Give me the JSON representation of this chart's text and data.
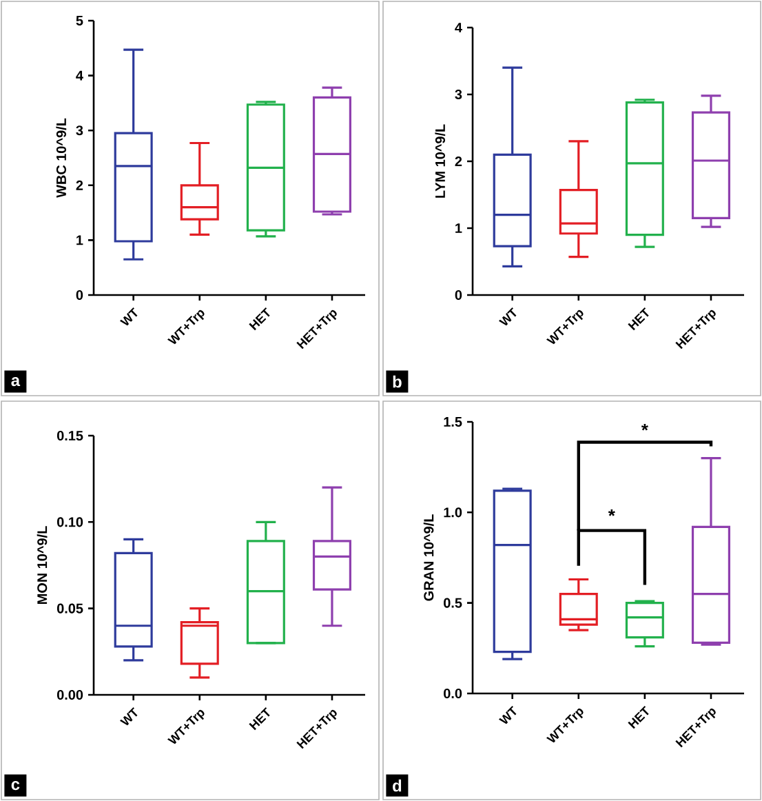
{
  "chart_data": [
    {
      "type": "box",
      "ylabel": "WBC 10^9/L",
      "categories": [
        "WT",
        "WT+Trp",
        "HET",
        "HET+Trp"
      ],
      "colors": [
        "#2e3b9c",
        "#e31e24",
        "#22b14c",
        "#8e3fae"
      ],
      "ylim": [
        0,
        5
      ],
      "yticks": [
        0,
        1,
        2,
        3,
        4,
        5
      ],
      "annotations": [
        "a"
      ],
      "boxes": [
        {
          "low": 0.65,
          "q1": 0.98,
          "median": 2.35,
          "q3": 2.95,
          "high": 4.47
        },
        {
          "low": 1.1,
          "q1": 1.38,
          "median": 1.6,
          "q3": 2.0,
          "high": 2.77
        },
        {
          "low": 1.07,
          "q1": 1.18,
          "median": 2.32,
          "q3": 3.47,
          "high": 3.52
        },
        {
          "low": 1.47,
          "q1": 1.52,
          "median": 2.57,
          "q3": 3.6,
          "high": 3.78
        }
      ]
    },
    {
      "type": "box",
      "ylabel": "LYM 10^9/L",
      "categories": [
        "WT",
        "WT+Trp",
        "HET",
        "HET+Trp"
      ],
      "colors": [
        "#2e3b9c",
        "#e31e24",
        "#22b14c",
        "#8e3fae"
      ],
      "ylim": [
        0,
        4
      ],
      "yticks": [
        0,
        1,
        2,
        3,
        4
      ],
      "annotations": [
        "b"
      ],
      "boxes": [
        {
          "low": 0.43,
          "q1": 0.73,
          "median": 1.2,
          "q3": 2.1,
          "high": 3.4
        },
        {
          "low": 0.57,
          "q1": 0.92,
          "median": 1.07,
          "q3": 1.57,
          "high": 2.3
        },
        {
          "low": 0.72,
          "q1": 0.9,
          "median": 1.97,
          "q3": 2.88,
          "high": 2.92
        },
        {
          "low": 1.02,
          "q1": 1.15,
          "median": 2.01,
          "q3": 2.73,
          "high": 2.98
        }
      ]
    },
    {
      "type": "box",
      "ylabel": "MON 10^9/L",
      "categories": [
        "WT",
        "WT+Trp",
        "HET",
        "HET+Trp"
      ],
      "colors": [
        "#2e3b9c",
        "#e31e24",
        "#22b14c",
        "#8e3fae"
      ],
      "ylim": [
        0,
        0.15
      ],
      "yticks": [
        {
          "value": 0,
          "label": "0.00"
        },
        {
          "value": 0.05,
          "label": "0.05"
        },
        {
          "value": 0.1,
          "label": "0.10"
        },
        {
          "value": 0.15,
          "label": "0.15"
        }
      ],
      "annotations": [
        "c"
      ],
      "boxes": [
        {
          "low": 0.02,
          "q1": 0.028,
          "median": 0.04,
          "q3": 0.082,
          "high": 0.09
        },
        {
          "low": 0.01,
          "q1": 0.018,
          "median": 0.04,
          "q3": 0.042,
          "high": 0.05
        },
        {
          "low": 0.03,
          "q1": 0.03,
          "median": 0.06,
          "q3": 0.089,
          "high": 0.1
        },
        {
          "low": 0.04,
          "q1": 0.061,
          "median": 0.08,
          "q3": 0.089,
          "high": 0.12
        }
      ]
    },
    {
      "type": "box",
      "ylabel": "GRAN 10^9/L",
      "categories": [
        "WT",
        "WT+Trp",
        "HET",
        "HET+Trp"
      ],
      "colors": [
        "#2e3b9c",
        "#e31e24",
        "#22b14c",
        "#8e3fae"
      ],
      "ylim": [
        0,
        1.5
      ],
      "yticks": [
        {
          "value": 0,
          "label": "0.0"
        },
        {
          "value": 0.5,
          "label": "0.5"
        },
        {
          "value": 1.0,
          "label": "1.0"
        },
        {
          "value": 1.5,
          "label": "1.5"
        }
      ],
      "annotations": [
        "d",
        "*",
        "*"
      ],
      "boxes": [
        {
          "low": 0.19,
          "q1": 0.23,
          "median": 0.82,
          "q3": 1.12,
          "high": 1.13
        },
        {
          "low": 0.35,
          "q1": 0.38,
          "median": 0.41,
          "q3": 0.55,
          "high": 0.63
        },
        {
          "low": 0.26,
          "q1": 0.31,
          "median": 0.42,
          "q3": 0.5,
          "high": 0.51
        },
        {
          "low": 0.27,
          "q1": 0.28,
          "median": 0.55,
          "q3": 0.92,
          "high": 1.3
        }
      ]
    }
  ]
}
